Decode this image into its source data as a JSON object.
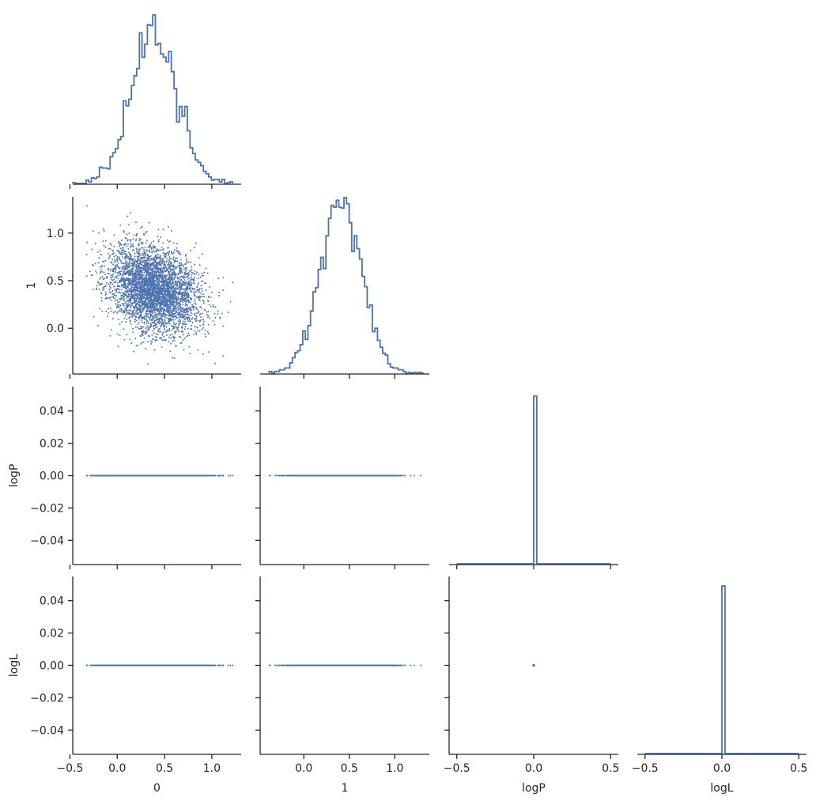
{
  "chart_data": {
    "type": "scatter",
    "layout": "corner pairplot (lower triangle)",
    "variables": [
      "0",
      "1",
      "logP",
      "logL"
    ],
    "xlabels": [
      "0",
      "1",
      "logP",
      "logL"
    ],
    "ylabels": [
      "",
      "1",
      "logP",
      "logL"
    ],
    "n_samples": 4000,
    "colors": {
      "series": "#4c72b0",
      "axes": "#262626",
      "background": "#ffffff"
    },
    "axes_ranges": {
      "0": [
        -0.47,
        1.31
      ],
      "1": [
        -0.48,
        1.38
      ],
      "logP": [
        -0.55,
        0.55
      ],
      "logL": [
        -0.55,
        0.55
      ]
    },
    "y_ranges": {
      "1": [
        -0.48,
        1.38
      ],
      "logP": [
        -0.055,
        0.055
      ],
      "logL": [
        -0.055,
        0.055
      ]
    },
    "ticks": {
      "x_0": [
        "-0.5",
        "0.0",
        "0.5",
        "1.0"
      ],
      "x_1": [
        "0.0",
        "0.5",
        "1.0"
      ],
      "x_logP": [
        "-0.5",
        "0.0",
        "0.5"
      ],
      "x_logL": [
        "-0.5",
        "0.0",
        "0.5"
      ],
      "y_1": [
        "0.0",
        "0.5",
        "1.0"
      ],
      "y_logP": [
        "-0.04",
        "-0.02",
        "0.00",
        "0.02",
        "0.04"
      ],
      "y_logL": [
        "-0.04",
        "-0.02",
        "0.00",
        "0.02",
        "0.04"
      ]
    },
    "tick_values": {
      "x_0": [
        -0.5,
        0.0,
        0.5,
        1.0
      ],
      "x_1": [
        0.0,
        0.5,
        1.0
      ],
      "x_logP": [
        -0.5,
        0.0,
        0.5
      ],
      "x_logL": [
        -0.5,
        0.0,
        0.5
      ],
      "y_1": [
        0.0,
        0.5,
        1.0
      ],
      "y_logP": [
        -0.04,
        -0.02,
        0.0,
        0.02,
        0.04
      ],
      "y_logL": [
        -0.04,
        -0.02,
        0.0,
        0.02,
        0.04
      ]
    },
    "marginals": {
      "0": {
        "type": "step-histogram",
        "mean": 0.39,
        "std": 0.24,
        "range": [
          -0.47,
          1.22
        ]
      },
      "1": {
        "type": "step-histogram",
        "mean": 0.41,
        "std": 0.23,
        "range": [
          -0.38,
          1.32
        ]
      },
      "logP": {
        "type": "step-histogram",
        "all_values": 0.0
      },
      "logL": {
        "type": "step-histogram",
        "all_values": 0.0
      }
    },
    "joint": {
      "1_vs_0": {
        "correlation": -0.25
      },
      "logP_vs_0": {
        "y_value": 0.0
      },
      "logP_vs_1": {
        "y_value": 0.0
      },
      "logL_vs_0": {
        "y_value": 0.0
      },
      "logL_vs_1": {
        "y_value": 0.0
      },
      "logL_vs_logP": {
        "x_value": 0.0,
        "y_value": 0.0
      }
    },
    "grid": false,
    "legend": "none"
  }
}
